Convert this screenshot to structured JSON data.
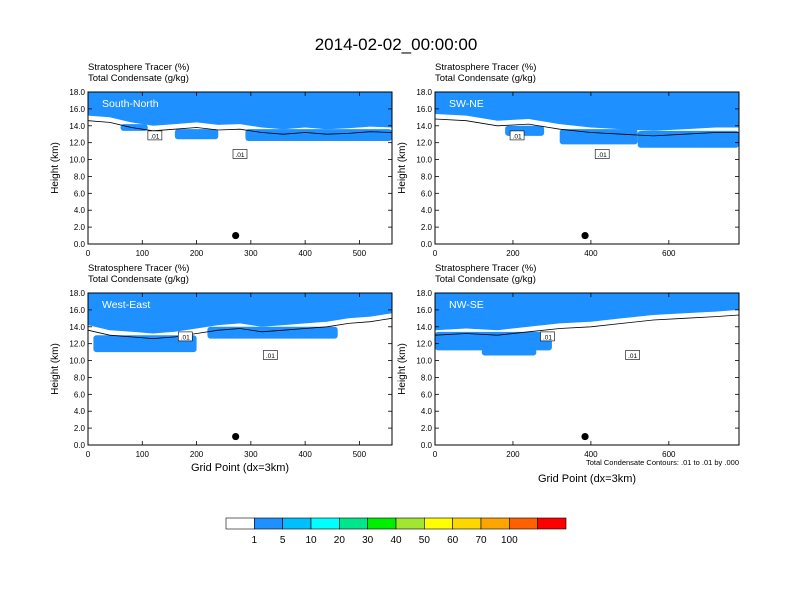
{
  "title": "2014-02-02_00:00:00",
  "panel_field_labels": [
    "Stratosphere Tracer   (%)",
    "Total Condensate   (g/kg)"
  ],
  "ylabel": "Height (km)",
  "xlabel": "Grid Point (dx=3km)",
  "contour_info": "Total Condensate Contours: .01 to .01 by .000",
  "contour_label": ".01",
  "colorbar": {
    "levels": [
      "1",
      "5",
      "10",
      "20",
      "30",
      "40",
      "50",
      "60",
      "70",
      "100"
    ],
    "colors": [
      "#ffffff",
      "#1e90ff",
      "#00bfff",
      "#00ffff",
      "#00e68c",
      "#00ee00",
      "#a0e632",
      "#ffff00",
      "#ffd700",
      "#ffa500",
      "#ff6000",
      "#ff0000"
    ]
  },
  "chart_data": [
    {
      "type": "contour",
      "name": "South-North",
      "ylim": [
        0,
        18
      ],
      "xlim": [
        0,
        560
      ],
      "yticks": [
        "0.0",
        "2.0",
        "4.0",
        "6.0",
        "8.0",
        "10.0",
        "12.0",
        "14.0",
        "16.0",
        "18.0"
      ],
      "xticks": [
        {
          "v": 0,
          "label": "0"
        },
        {
          "v": 100,
          "label": "100"
        },
        {
          "v": 200,
          "label": "200"
        },
        {
          "v": 300,
          "label": "300"
        },
        {
          "v": 400,
          "label": "400"
        },
        {
          "v": 500,
          "label": "500"
        }
      ],
      "marker": {
        "x": 272,
        "y": 1.0
      },
      "tropo_base": [
        [
          0,
          15.2
        ],
        [
          40,
          15.0
        ],
        [
          80,
          14.4
        ],
        [
          120,
          14.0
        ],
        [
          160,
          14.2
        ],
        [
          200,
          14.4
        ],
        [
          240,
          14.1
        ],
        [
          280,
          14.2
        ],
        [
          320,
          13.8
        ],
        [
          360,
          13.6
        ],
        [
          400,
          13.8
        ],
        [
          440,
          13.6
        ],
        [
          480,
          13.7
        ],
        [
          520,
          13.9
        ],
        [
          560,
          13.8
        ]
      ],
      "blue_patches": [
        {
          "x0": 160,
          "x1": 240,
          "y0": 12.4,
          "y1": 13.6
        },
        {
          "x0": 290,
          "x1": 560,
          "y0": 12.2,
          "y1": 13.6
        },
        {
          "x0": 60,
          "x1": 110,
          "y0": 13.4,
          "y1": 14.2
        }
      ]
    },
    {
      "type": "contour",
      "name": "SW-NE",
      "ylim": [
        0,
        18
      ],
      "xlim": [
        0,
        780
      ],
      "yticks": [
        "0.0",
        "2.0",
        "4.0",
        "6.0",
        "8.0",
        "10.0",
        "12.0",
        "14.0",
        "16.0",
        "18.0"
      ],
      "xticks": [
        {
          "v": 0,
          "label": "0"
        },
        {
          "v": 200,
          "label": "200"
        },
        {
          "v": 400,
          "label": "400"
        },
        {
          "v": 600,
          "label": "600"
        }
      ],
      "marker": {
        "x": 385,
        "y": 1.0
      },
      "tropo_base": [
        [
          0,
          15.4
        ],
        [
          80,
          15.2
        ],
        [
          160,
          14.6
        ],
        [
          240,
          14.8
        ],
        [
          320,
          14.2
        ],
        [
          400,
          13.8
        ],
        [
          480,
          13.6
        ],
        [
          560,
          13.4
        ],
        [
          640,
          13.6
        ],
        [
          720,
          13.8
        ],
        [
          780,
          13.8
        ]
      ],
      "blue_patches": [
        {
          "x0": 320,
          "x1": 520,
          "y0": 11.8,
          "y1": 13.6
        },
        {
          "x0": 520,
          "x1": 780,
          "y0": 11.4,
          "y1": 13.4
        },
        {
          "x0": 180,
          "x1": 280,
          "y0": 12.8,
          "y1": 14.0
        }
      ]
    },
    {
      "type": "contour",
      "name": "West-East",
      "ylim": [
        0,
        18
      ],
      "xlim": [
        0,
        560
      ],
      "yticks": [
        "0.0",
        "2.0",
        "4.0",
        "6.0",
        "8.0",
        "10.0",
        "12.0",
        "14.0",
        "16.0",
        "18.0"
      ],
      "xticks": [
        {
          "v": 0,
          "label": "0"
        },
        {
          "v": 100,
          "label": "100"
        },
        {
          "v": 200,
          "label": "200"
        },
        {
          "v": 300,
          "label": "300"
        },
        {
          "v": 400,
          "label": "400"
        },
        {
          "v": 500,
          "label": "500"
        }
      ],
      "marker": {
        "x": 272,
        "y": 1.0
      },
      "tropo_base": [
        [
          0,
          14.2
        ],
        [
          40,
          13.6
        ],
        [
          80,
          13.4
        ],
        [
          120,
          13.2
        ],
        [
          160,
          13.4
        ],
        [
          200,
          13.8
        ],
        [
          240,
          14.2
        ],
        [
          280,
          14.4
        ],
        [
          320,
          14.0
        ],
        [
          360,
          14.2
        ],
        [
          400,
          14.4
        ],
        [
          440,
          14.6
        ],
        [
          480,
          15.0
        ],
        [
          520,
          15.2
        ],
        [
          560,
          15.6
        ]
      ],
      "blue_patches": [
        {
          "x0": 10,
          "x1": 200,
          "y0": 11.0,
          "y1": 13.0
        },
        {
          "x0": 220,
          "x1": 460,
          "y0": 12.6,
          "y1": 14.0
        }
      ]
    },
    {
      "type": "contour",
      "name": "NW-SE",
      "ylim": [
        0,
        18
      ],
      "xlim": [
        0,
        780
      ],
      "yticks": [
        "0.0",
        "2.0",
        "4.0",
        "6.0",
        "8.0",
        "10.0",
        "12.0",
        "14.0",
        "16.0",
        "18.0"
      ],
      "xticks": [
        {
          "v": 0,
          "label": "0"
        },
        {
          "v": 200,
          "label": "200"
        },
        {
          "v": 400,
          "label": "400"
        },
        {
          "v": 600,
          "label": "600"
        }
      ],
      "marker": {
        "x": 385,
        "y": 1.0
      },
      "tropo_base": [
        [
          0,
          13.6
        ],
        [
          80,
          13.8
        ],
        [
          160,
          13.6
        ],
        [
          240,
          14.0
        ],
        [
          320,
          14.4
        ],
        [
          400,
          14.6
        ],
        [
          480,
          15.0
        ],
        [
          560,
          15.4
        ],
        [
          640,
          15.6
        ],
        [
          720,
          15.8
        ],
        [
          780,
          16.0
        ]
      ],
      "blue_patches": [
        {
          "x0": 0,
          "x1": 300,
          "y0": 11.2,
          "y1": 13.4
        },
        {
          "x0": 120,
          "x1": 260,
          "y0": 10.6,
          "y1": 11.4
        }
      ]
    }
  ]
}
